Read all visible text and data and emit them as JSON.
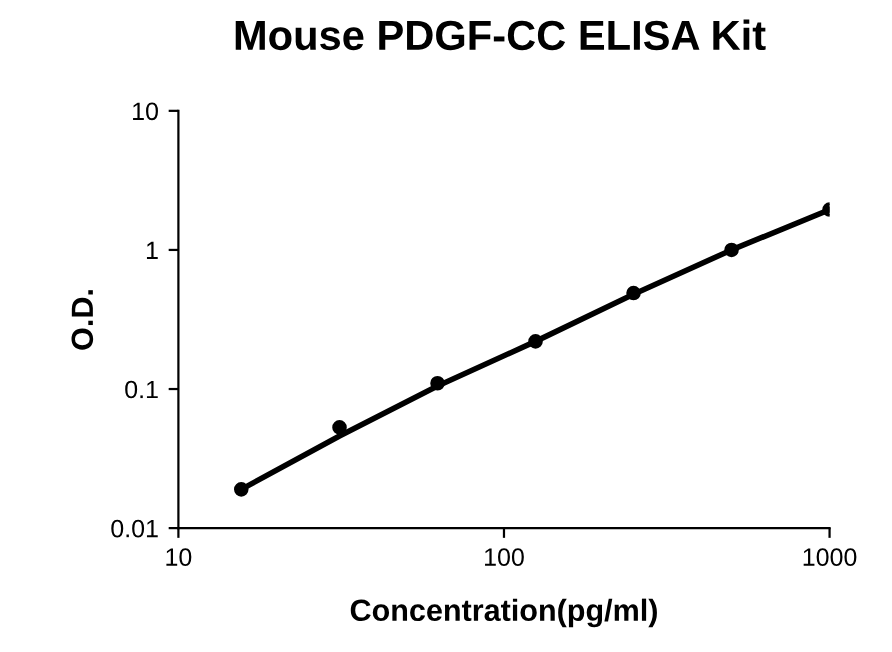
{
  "chart_data": {
    "type": "scatter",
    "title": "Mouse PDGF-CC ELISA Kit",
    "xlabel": "Concentration(pg/ml)",
    "ylabel": "O.D.",
    "log": "xy",
    "xlim": [
      10,
      1000
    ],
    "ylim": [
      0.01,
      10
    ],
    "xticks": [
      10,
      100,
      1000
    ],
    "yticks": [
      0.01,
      0.1,
      1,
      10
    ],
    "grid": false,
    "legend": false,
    "series": [
      {
        "color": "#000000",
        "marker": "circle",
        "x": [
          15.6,
          31.25,
          62.5,
          125,
          250,
          500,
          1000
        ],
        "values": [
          0.019,
          0.053,
          0.11,
          0.22,
          0.49,
          1.0,
          1.95
        ]
      },
      {
        "type": "line",
        "color": "#000000",
        "marker": "none",
        "x": [
          15.6,
          31.25,
          62.5,
          125,
          250,
          500,
          1000
        ],
        "values": [
          0.019,
          0.046,
          0.105,
          0.22,
          0.48,
          1.0,
          1.95
        ]
      }
    ]
  }
}
